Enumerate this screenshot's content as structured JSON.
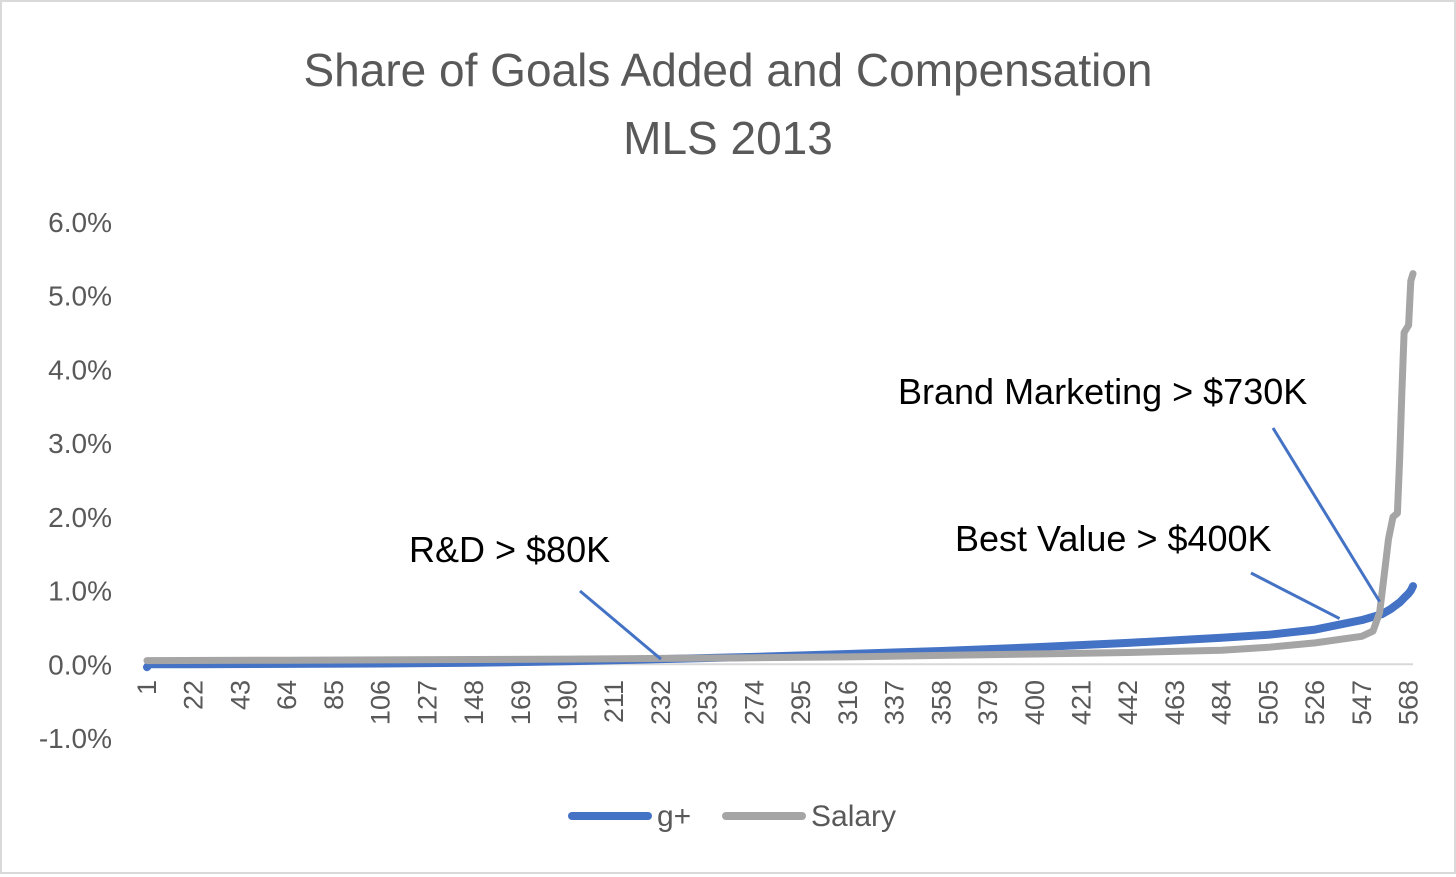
{
  "chart_data": {
    "type": "line",
    "title": "Share of Goals Added and Compensation",
    "subtitle": "MLS 2013",
    "xlabel": "",
    "ylabel": "",
    "x_ticks": [
      "1",
      "22",
      "43",
      "64",
      "85",
      "106",
      "127",
      "148",
      "169",
      "190",
      "211",
      "232",
      "253",
      "274",
      "295",
      "316",
      "337",
      "358",
      "379",
      "400",
      "421",
      "442",
      "463",
      "484",
      "505",
      "526",
      "547",
      "568"
    ],
    "y_ticks": [
      "6.0%",
      "5.0%",
      "4.0%",
      "3.0%",
      "2.0%",
      "1.0%",
      "0.0%",
      "-1.0%"
    ],
    "xlim": [
      1,
      570
    ],
    "ylim": [
      -1.0,
      6.0
    ],
    "grid": false,
    "legend": "bottom",
    "series": [
      {
        "name": "g+",
        "color": "#4472c4",
        "x": [
          1,
          2,
          22,
          64,
          106,
          148,
          190,
          232,
          274,
          316,
          358,
          400,
          442,
          484,
          505,
          526,
          547,
          556,
          560,
          564,
          566,
          568,
          569,
          570
        ],
        "y": [
          -0.04,
          0.0,
          0.0,
          0.005,
          0.01,
          0.02,
          0.04,
          0.07,
          0.1,
          0.14,
          0.18,
          0.23,
          0.29,
          0.36,
          0.4,
          0.47,
          0.6,
          0.68,
          0.75,
          0.84,
          0.9,
          0.96,
          1.0,
          1.06
        ]
      },
      {
        "name": "Salary",
        "color": "#a5a5a5",
        "x": [
          1,
          64,
          106,
          148,
          190,
          232,
          274,
          316,
          358,
          400,
          442,
          484,
          505,
          526,
          547,
          552,
          555,
          557,
          559,
          561,
          563,
          564,
          565,
          566,
          567,
          568,
          569,
          570
        ],
        "y": [
          0.05,
          0.055,
          0.06,
          0.065,
          0.07,
          0.08,
          0.09,
          0.1,
          0.12,
          0.14,
          0.16,
          0.19,
          0.23,
          0.29,
          0.38,
          0.45,
          0.7,
          1.2,
          1.7,
          2.0,
          2.05,
          2.8,
          3.7,
          4.5,
          4.55,
          4.6,
          5.2,
          5.3
        ]
      }
    ],
    "annotations": [
      {
        "text": "R&D > $80K",
        "x": 232,
        "y": 0.07
      },
      {
        "text": "Best Value > $400K",
        "x": 537,
        "y": 0.62
      },
      {
        "text": "Brand Marketing > $730K",
        "x": 555,
        "y": 0.85
      }
    ]
  }
}
